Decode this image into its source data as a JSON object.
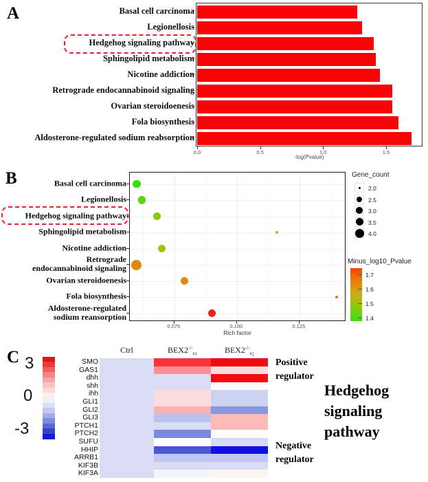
{
  "chart_data": [
    {
      "type": "bar",
      "panel": "A",
      "orientation": "horizontal",
      "categories": [
        "Basal cell carcinoma",
        "Legionellosis",
        "Hedgehog signaling pathway",
        "Sphingolipid metabolism",
        "Nicotine addiction",
        "Retrograde endocannabinoid signaling",
        "Ovarian steroidoenesis",
        "Fola biosynthesis",
        "Aldosterone-regulated sodium reabsorption"
      ],
      "values": [
        1.27,
        1.31,
        1.4,
        1.42,
        1.45,
        1.55,
        1.55,
        1.6,
        1.7
      ],
      "xlabel": "-log(Pvalue)",
      "x_ticks": [
        "0.0",
        "0.5",
        "1.0",
        "1.5"
      ],
      "xlim": [
        0.0,
        1.79
      ],
      "bar_color": "#f80406",
      "grid": false,
      "highlight_index": 2,
      "highlight_color": "#e62230"
    },
    {
      "type": "scatter",
      "panel": "B",
      "xlabel": "Rich factor",
      "x_ticks": [
        "0.075",
        "0.100",
        "0.125"
      ],
      "xlim": [
        0.0572,
        0.1437
      ],
      "grid": true,
      "highlight_index": 2,
      "points": [
        {
          "category": "Basal cell carcinoma",
          "label_lines": [
            "Basal cell carcinoma"
          ],
          "rich_factor": 0.06,
          "gene_count": 3,
          "minus_log10_pvalue": 1.27,
          "color": "#2fe10d"
        },
        {
          "category": "Legionellosis",
          "label_lines": [
            "Legionellosis"
          ],
          "rich_factor": 0.062,
          "gene_count": 3,
          "minus_log10_pvalue": 1.31,
          "color": "#58d90f"
        },
        {
          "category": "Hedgehog signaling pathway",
          "label_lines": [
            "Hedgehog signaling pathway"
          ],
          "rich_factor": 0.068,
          "gene_count": 3,
          "minus_log10_pvalue": 1.4,
          "color": "#86ca0c"
        },
        {
          "category": "Sphingolipid metabolism",
          "label_lines": [
            "Sphingolipid metabolism"
          ],
          "rich_factor": 0.116,
          "gene_count": 2,
          "minus_log10_pvalue": 1.42,
          "color": "#b5b815"
        },
        {
          "category": "Nicotine addiction",
          "label_lines": [
            "Nicotine addiction"
          ],
          "rich_factor": 0.07,
          "gene_count": 3,
          "minus_log10_pvalue": 1.45,
          "color": "#a3c40e"
        },
        {
          "category": "Retrograde endocannabinoid signaling",
          "label_lines": [
            "Retrograde",
            "endocannabinoid signaling"
          ],
          "rich_factor": 0.0597,
          "gene_count": 4,
          "minus_log10_pvalue": 1.55,
          "color": "#e0870e"
        },
        {
          "category": "Ovarian steroidoenesis",
          "label_lines": [
            "Ovarian steroidoenesis"
          ],
          "rich_factor": 0.079,
          "gene_count": 3,
          "minus_log10_pvalue": 1.55,
          "color": "#dd8b13"
        },
        {
          "category": "Fola biosynthesis",
          "label_lines": [
            "Fola biosynthesis"
          ],
          "rich_factor": 0.14,
          "gene_count": 2,
          "minus_log10_pvalue": 1.6,
          "color": "#cb7b1e"
        },
        {
          "category": "Aldosterone-regulated sodium reansorption",
          "label_lines": [
            "Aldosterone-regulated",
            "sodium reansorption"
          ],
          "rich_factor": 0.09,
          "gene_count": 3,
          "minus_log10_pvalue": 1.7,
          "color": "#ee2113"
        }
      ],
      "size_legend": {
        "title": "Gene_count",
        "items": [
          {
            "label": "2.0",
            "d": 3
          },
          {
            "label": "2.5",
            "d": 8
          },
          {
            "label": "3.0",
            "d": 9.5
          },
          {
            "label": "3.5",
            "d": 11
          },
          {
            "label": "4.0",
            "d": 13
          }
        ]
      },
      "color_legend": {
        "title": "Minus_log10_Pvalue",
        "ticks": [
          "1.7",
          "1.6",
          "1.5",
          "1.4"
        ],
        "gradient": [
          "#f5430c",
          "#ea7f0a",
          "#c9ae12",
          "#86cb0e",
          "#37e20e"
        ]
      }
    },
    {
      "type": "heatmap",
      "panel": "C",
      "rows": [
        "SMO",
        "GAS1",
        "dhh",
        "shh",
        "ihh",
        "GLI1",
        "GLI2",
        "GLI3",
        "PTCH1",
        "PTCH2",
        "SUFU",
        "HHIP",
        "ARRB1",
        "KIF3B",
        "KIF3A"
      ],
      "columns": [
        "Ctrl",
        "BEX2-/- #1",
        "BEX2-/- #2"
      ],
      "column_headers": [
        {
          "base": "Ctrl",
          "sup": "",
          "sub": ""
        },
        {
          "base": "BEX2",
          "sup": "-/-",
          "sub": "#1"
        },
        {
          "base": "BEX2",
          "sup": "-/-",
          "sub": "#2"
        }
      ],
      "values_approx": [
        [
          -0.4,
          2.6,
          2.9
        ],
        [
          -0.4,
          1.4,
          0.45
        ],
        [
          -0.4,
          -0.4,
          2.9
        ],
        [
          -0.4,
          -0.4,
          0.05
        ],
        [
          -0.4,
          0.45,
          -0.6
        ],
        [
          -0.4,
          0.45,
          -0.6
        ],
        [
          -0.4,
          1.0,
          -1.5
        ],
        [
          -0.4,
          -0.85,
          0.9
        ],
        [
          -0.4,
          -0.4,
          0.9
        ],
        [
          -0.4,
          -1.7,
          0.0
        ],
        [
          -0.4,
          0.0,
          -0.5
        ],
        [
          -0.4,
          -2.3,
          -2.9
        ],
        [
          -0.4,
          -0.8,
          -0.8
        ],
        [
          -0.4,
          -0.4,
          -0.4
        ],
        [
          -0.4,
          -0.1,
          0.1
        ]
      ],
      "cell_colors": {
        "ctrl": [
          "#dadcf6",
          "#dadcf6",
          "#dadcf6",
          "#dadcf6",
          "#dadcf6",
          "#dadcf6",
          "#dadcf6",
          "#dadcf6",
          "#dadcf6",
          "#dadcf6",
          "#dadcf6",
          "#dadcf6",
          "#dadcf6",
          "#dadcf6",
          "#dadcf6"
        ],
        "ko1": [
          "#f8353d",
          "#fa8d92",
          "#dadcf6",
          "#dadcf6",
          "#fbdddc",
          "#fbdddc",
          "#f9b1b3",
          "#b9c2ee",
          "#dadcf6",
          "#7d88dc",
          "#fdfdff",
          "#4856cf",
          "#bfc7f0",
          "#dadcf6",
          "#f4f4fb"
        ],
        "ko2": [
          "#f30b13",
          "#fadcdc",
          "#f30b13",
          "#fbfbfe",
          "#ccd3f1",
          "#ccd3f1",
          "#8b96e0",
          "#fcbab9",
          "#fcbab9",
          "#fdfdfe",
          "#d5d9f4",
          "#1010e0",
          "#bfc7f0",
          "#dadcf6",
          "#fdf4f4"
        ]
      },
      "colorbar": {
        "labels": [
          "3",
          "0",
          "-3"
        ],
        "max": 3,
        "min": -3,
        "colors": [
          "#e11515",
          "#ea3b3b",
          "#f06060",
          "#f48484",
          "#f7a6a6",
          "#fac2c2",
          "#fcdada",
          "#feeeee",
          "#f0f1fb",
          "#dcdff7",
          "#c2c8f1",
          "#a3abe8",
          "#7f8bdd",
          "#5b6ad3",
          "#3644c9",
          "#1717dd"
        ]
      },
      "annotations": {
        "positive_line1": "Positive",
        "positive_line2": "regulator",
        "negative_line1": "Negative",
        "negative_line2": "regulator",
        "side_title_lines": [
          "Hedgehog",
          "signaling",
          "pathway"
        ]
      }
    }
  ]
}
